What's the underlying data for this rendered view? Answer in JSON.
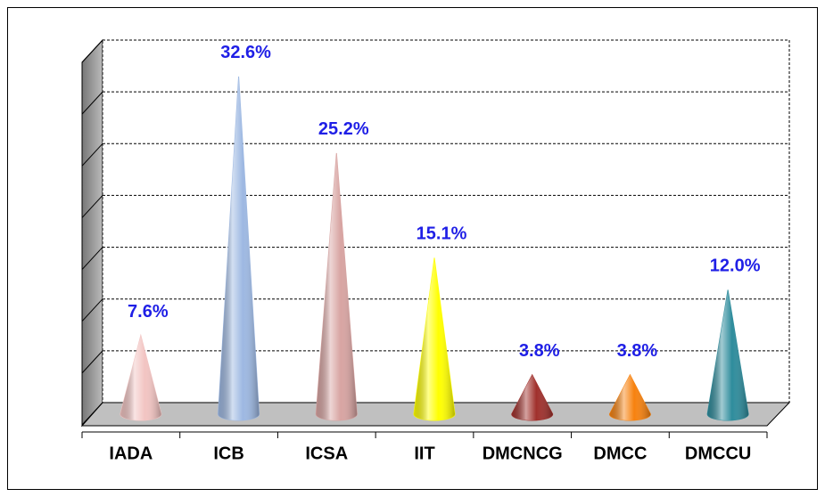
{
  "chart_data": {
    "type": "cone",
    "categories": [
      "IADA",
      "ICB",
      "ICSA",
      "IIT",
      "DMCNCG",
      "DMCC",
      "DMCCU"
    ],
    "values": [
      7.6,
      32.6,
      25.2,
      15.1,
      3.8,
      3.8,
      12.0
    ],
    "value_labels": [
      "7.6%",
      "32.6%",
      "25.2%",
      "15.1%",
      "3.8%",
      "3.8%",
      "12.0%"
    ],
    "colors": [
      "#f2c4c2",
      "#9db8e2",
      "#d8a4a2",
      "#ffff00",
      "#a0302c",
      "#f7820f",
      "#2e8c9c"
    ],
    "ylim": [
      0,
      35
    ],
    "yticks": [
      0,
      5,
      10,
      15,
      20,
      25,
      30,
      35
    ],
    "grid": true
  }
}
